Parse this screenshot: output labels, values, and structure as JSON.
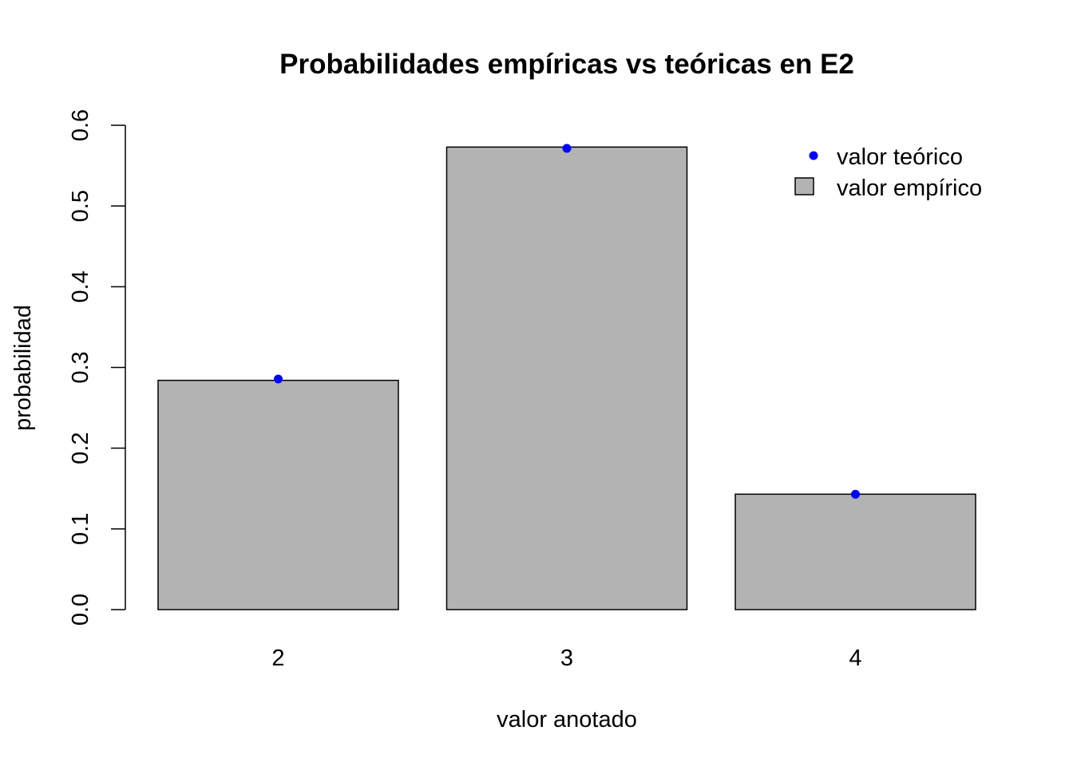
{
  "chart_data": {
    "type": "bar",
    "title": "Probabilidades empíricas vs teóricas en E2",
    "xlabel": "valor anotado",
    "ylabel": "probabilidad",
    "categories": [
      "2",
      "3",
      "4"
    ],
    "ylim": [
      0,
      0.6
    ],
    "yticks": [
      0,
      0.1,
      0.2,
      0.3,
      0.4,
      0.5,
      0.6
    ],
    "ytick_labels": [
      "0.0",
      "0.1",
      "0.2",
      "0.3",
      "0.4",
      "0.5",
      "0.6"
    ],
    "series": [
      {
        "name": "valor empírico",
        "kind": "bar",
        "values": [
          0.284,
          0.573,
          0.143
        ],
        "color": "#b3b3b3"
      },
      {
        "name": "valor teórico",
        "kind": "point",
        "values": [
          0.2857,
          0.5714,
          0.1429
        ],
        "color": "#0000ff"
      }
    ],
    "legend": {
      "position": "top-right",
      "entries": [
        {
          "label": "valor teórico",
          "symbol": "point",
          "color": "#0000ff"
        },
        {
          "label": "valor empírico",
          "symbol": "box",
          "color": "#b3b3b3"
        }
      ]
    },
    "grid": false
  }
}
